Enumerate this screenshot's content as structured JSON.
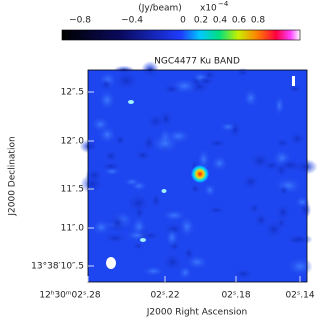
{
  "title": "NGC4477 Ku BAND",
  "colorbar": {
    "label": "(Jy/beam)",
    "scale": "x10",
    "exponent": "−4",
    "ticks": [
      "−0.8",
      "−0.4",
      "0",
      "0.2",
      "0.4",
      "0.6",
      "0.8"
    ]
  },
  "x_axis": {
    "label": "J2000 Right Ascension",
    "ticks": [
      "12ʰ30ᵐ02ˢ.28",
      "02ˢ.22",
      "02ˢ.18",
      "02ˢ.14"
    ]
  },
  "y_axis": {
    "label": "J2000 Declination",
    "ticks": [
      "12″.5",
      "12″.0",
      "11″.5",
      "11″.0",
      "13°38′10″.5"
    ]
  }
}
